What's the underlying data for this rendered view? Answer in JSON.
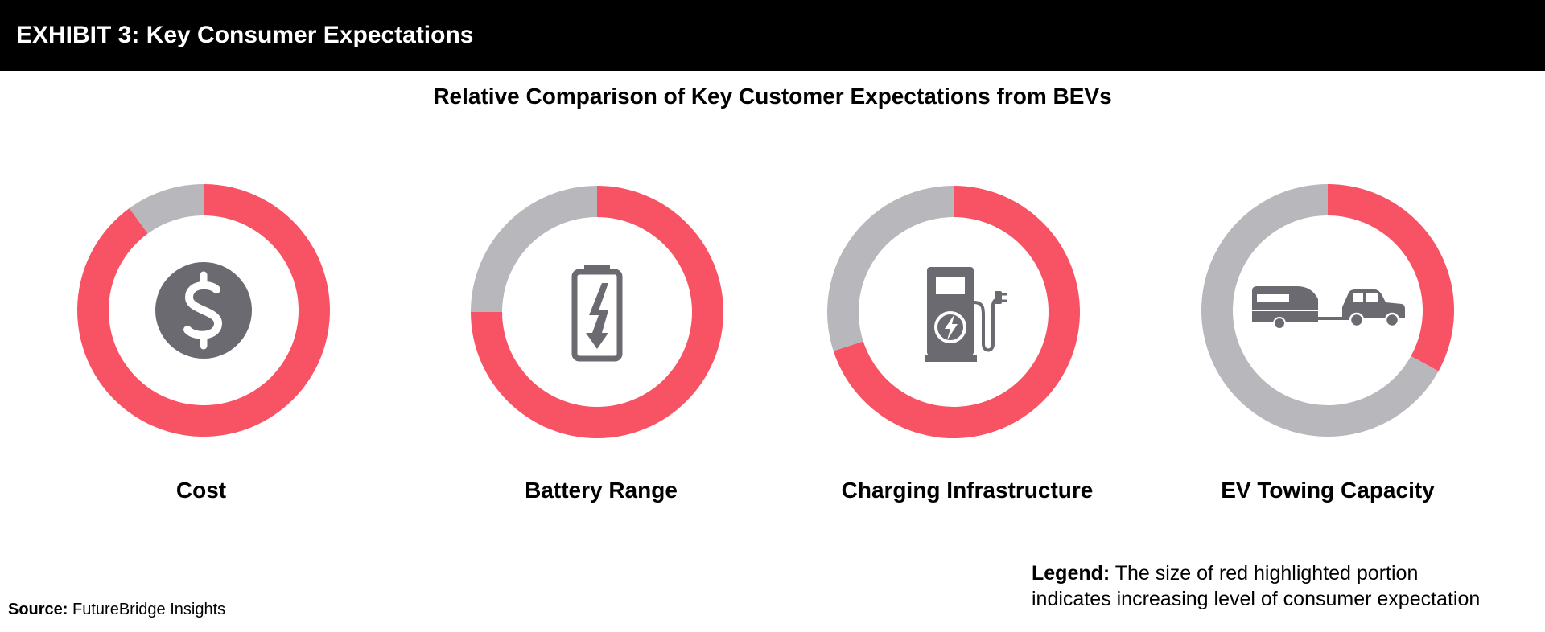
{
  "header": {
    "title": "EXHIBIT 3: Key Consumer Expectations"
  },
  "chart_data": {
    "type": "pie",
    "variant": "donut",
    "title": "Relative Comparison of Key Customer Expectations from BEVs",
    "highlight_color": "#F75364",
    "remainder_color": "#B8B7BC",
    "icon_color": "#6B6A70",
    "categories": [
      "Cost",
      "Battery Range",
      "Charging Infrastructure",
      "EV Towing Capacity"
    ],
    "series": [
      {
        "values": [
          0.9,
          0.75,
          0.7,
          0.33
        ]
      }
    ],
    "icons": [
      "dollar-coin-icon",
      "battery-charging-icon",
      "ev-charger-icon",
      "car-towing-trailer-icon"
    ]
  },
  "legend": {
    "label": "Legend:",
    "line1": "The size of red highlighted portion",
    "line2": "indicates increasing level of consumer expectation"
  },
  "source": {
    "label": "Source:",
    "text": "FutureBridge Insights"
  }
}
